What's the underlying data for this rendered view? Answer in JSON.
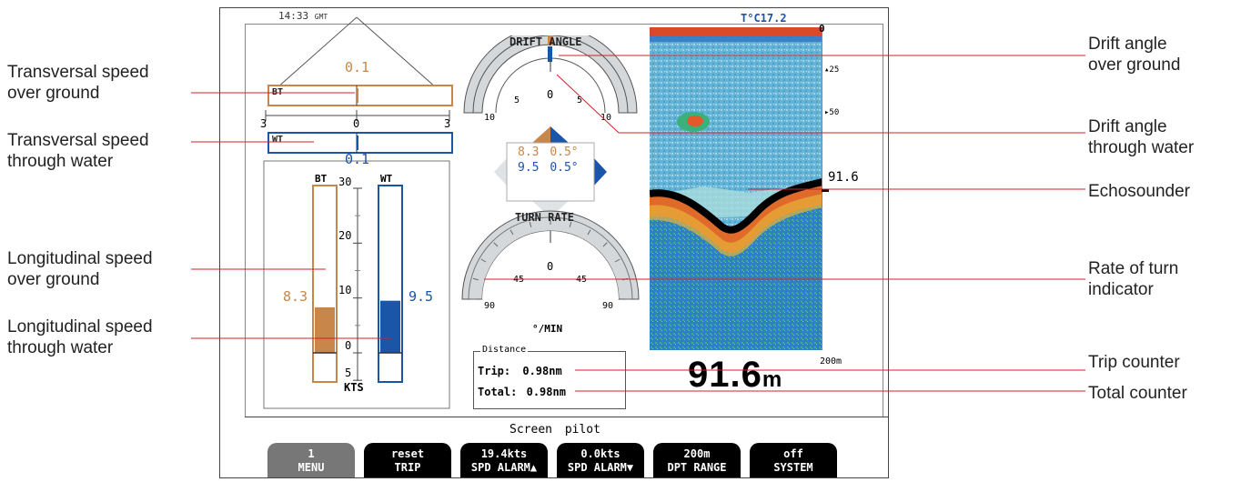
{
  "callouts": {
    "trans_sog": [
      "Transversal speed",
      "over ground"
    ],
    "trans_stw": [
      "Transversal speed",
      "through water"
    ],
    "long_sog": [
      "Longitudinal speed",
      "over ground"
    ],
    "long_stw": [
      "Longitudinal speed",
      "through water"
    ],
    "drift_ground": [
      "Drift angle",
      "over ground"
    ],
    "drift_water": [
      "Drift angle",
      "through water"
    ],
    "echo": [
      "Echosounder"
    ],
    "rot": [
      "Rate of turn",
      "indicator"
    ],
    "trip": [
      "Trip counter"
    ],
    "total": [
      "Total counter"
    ]
  },
  "screen": {
    "time": "14:33",
    "time_zone": "GMT",
    "temperature": "T°C17.2",
    "transversal": {
      "bt_label": "BT",
      "wt_label": "WT",
      "bt_value": "0.1",
      "wt_value": "0.1",
      "scale_left": "3",
      "scale_center": "0",
      "scale_right": "3",
      "bt_fraction": 0.017,
      "wt_fraction": 0.017
    },
    "longitudinal": {
      "bt_label": "BT",
      "wt_label": "WT",
      "bt_value": "8.3",
      "wt_value": "9.5",
      "ticks": [
        "30",
        "20",
        "10",
        "0",
        "5"
      ],
      "unit": "KTS",
      "range": [
        -5,
        30
      ],
      "bt_speed": 8.3,
      "wt_speed": 9.5
    },
    "drift": {
      "title": "DRIFT ANGLE",
      "ticks": [
        "10",
        "5",
        "0",
        "5",
        "10"
      ],
      "bt_angle": 0.5,
      "wt_angle": 0.5,
      "bt_speed_text": "8.3",
      "bt_angle_text": "0.5°",
      "wt_speed_text": "9.5",
      "wt_angle_text": "0.5°"
    },
    "turn": {
      "title": "TURN RATE",
      "ticks": [
        "90",
        "45",
        "0",
        "45",
        "90"
      ],
      "unit": "°/MIN",
      "rate": 0
    },
    "distance": {
      "title": "Distance",
      "trip_label": "Trip:",
      "trip_value": "0.98nm",
      "total_label": "Total:",
      "total_value": "0.98nm"
    },
    "echo": {
      "top": "0",
      "d25": "25",
      "d50": "50",
      "bottom": "200m",
      "depth_marker": "91.6",
      "depth_big": "91.6",
      "depth_unit": "m"
    },
    "status": "Screen pilot",
    "softkeys": [
      {
        "l1": "1",
        "l2": "MENU"
      },
      {
        "l1": "reset",
        "l2": "TRIP"
      },
      {
        "l1": "19.4kts",
        "l2": "SPD ALARM▲"
      },
      {
        "l1": "0.0kts",
        "l2": "SPD ALARM▼"
      },
      {
        "l1": "200m",
        "l2": "DPT RANGE"
      },
      {
        "l1": "off",
        "l2": "SYSTEM"
      }
    ]
  },
  "colors": {
    "bt": "#c8864a",
    "wt": "#1a55a8",
    "dial": "#d5d8da"
  }
}
